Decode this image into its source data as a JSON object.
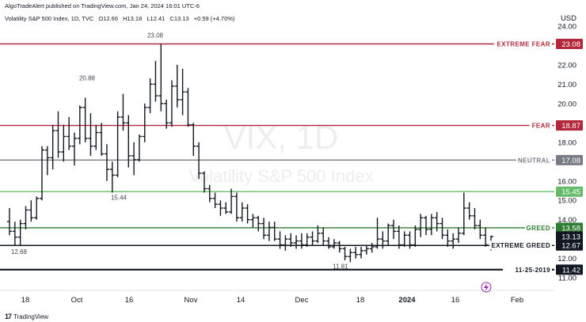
{
  "header": {
    "publisher": "AlgoTradeAlert published on TradingView.com, Jan 24, 2024 16:01 UTC-6",
    "symbol": "Volatility S&P 500 Index, 1D, TVC",
    "open": "O12.66",
    "high": "H13.18",
    "low": "L12.41",
    "close": "C13.13",
    "change": "+0.59 (+4.70%)"
  },
  "footer": {
    "logo": "17",
    "brand": "TradingView"
  },
  "colors": {
    "fear": "#b2283a",
    "neutral": "#787b86",
    "greed": "#2e7d32",
    "greed_light": "#66bb6a",
    "black": "#131722"
  },
  "chart_data": {
    "type": "ohlc-bar",
    "title": "Volatility S&P 500 Index",
    "watermark_symbol": "VIX, 1D",
    "watermark_name": "Volatility S&P 500 Index",
    "currency": "USD",
    "ylim": [
      10.2,
      24.4
    ],
    "y_ticks": [
      "11.00",
      "12.00",
      "13.00",
      "14.00",
      "15.00",
      "16.00",
      "18.00",
      "20.00",
      "21.00",
      "22.00",
      "23.00",
      "24.00"
    ],
    "x_ticks": [
      "18",
      "Oct",
      "16",
      "Nov",
      "14",
      "Dec",
      "18",
      "2024",
      "16",
      "Feb"
    ],
    "levels": [
      {
        "label": "EXTREME FEAR",
        "value": 23.08,
        "badge": "23.08",
        "color": "#b2283a"
      },
      {
        "label": "FEAR",
        "value": 18.87,
        "badge": "18.87",
        "color": "#b2283a"
      },
      {
        "label": "NEUTRAL",
        "value": 17.08,
        "badge": "17.08",
        "color": "#787b86"
      },
      {
        "label": "",
        "value": 15.45,
        "badge": "15.45",
        "color": "#66bb6a"
      },
      {
        "label": "GREED",
        "value": 13.58,
        "badge": "13.58",
        "color": "#2e7d32"
      },
      {
        "label": "EXTREME GREED",
        "value": 12.67,
        "badge": "12.67",
        "color": "#131722"
      },
      {
        "label": "11-25-2019",
        "value": 11.42,
        "badge": "11.42",
        "color": "#131722"
      }
    ],
    "last_price": {
      "value": 13.13,
      "badge": "13.13"
    },
    "annotations": [
      {
        "text": "23.08",
        "value": 23.08
      },
      {
        "text": "20.88",
        "value": 20.88
      },
      {
        "text": "15.44",
        "value": 15.44
      },
      {
        "text": "12.68",
        "value": 12.68
      },
      {
        "text": "11.81",
        "value": 11.81
      }
    ],
    "bars": [
      [
        13.9,
        14.6,
        13.2,
        13.4
      ],
      [
        13.4,
        13.9,
        12.7,
        13.1
      ],
      [
        13.1,
        14.0,
        12.7,
        13.8
      ],
      [
        13.8,
        14.7,
        13.5,
        14.5
      ],
      [
        14.5,
        15.0,
        13.9,
        14.1
      ],
      [
        14.1,
        15.2,
        14.0,
        15.1
      ],
      [
        15.1,
        17.8,
        15.0,
        17.6
      ],
      [
        17.6,
        17.8,
        16.3,
        17.2
      ],
      [
        17.2,
        18.9,
        16.6,
        18.6
      ],
      [
        18.6,
        19.6,
        17.2,
        17.5
      ],
      [
        17.5,
        18.9,
        17.0,
        18.3
      ],
      [
        18.3,
        19.3,
        17.6,
        17.8
      ],
      [
        17.8,
        18.5,
        16.8,
        18.2
      ],
      [
        18.2,
        19.9,
        17.9,
        19.8
      ],
      [
        19.8,
        20.3,
        18.0,
        18.2
      ],
      [
        18.2,
        19.5,
        17.3,
        17.8
      ],
      [
        17.8,
        18.9,
        17.6,
        18.5
      ],
      [
        18.5,
        19.0,
        17.3,
        17.4
      ],
      [
        17.4,
        17.9,
        16.0,
        16.6
      ],
      [
        16.6,
        17.0,
        15.4,
        16.3
      ],
      [
        16.3,
        19.6,
        16.2,
        19.3
      ],
      [
        19.3,
        20.5,
        18.6,
        19.0
      ],
      [
        19.0,
        19.4,
        16.7,
        17.3
      ],
      [
        17.3,
        18.0,
        16.3,
        17.1
      ],
      [
        17.1,
        18.4,
        17.0,
        18.3
      ],
      [
        18.3,
        20.0,
        18.0,
        19.8
      ],
      [
        19.8,
        21.3,
        19.5,
        21.0
      ],
      [
        21.0,
        22.2,
        20.1,
        20.4
      ],
      [
        20.4,
        23.08,
        19.6,
        20.0
      ],
      [
        20.0,
        20.2,
        18.7,
        19.0
      ],
      [
        19.0,
        21.2,
        18.8,
        20.9
      ],
      [
        20.9,
        22.0,
        19.8,
        20.2
      ],
      [
        20.2,
        21.8,
        19.4,
        20.6
      ],
      [
        20.6,
        20.8,
        18.8,
        18.9
      ],
      [
        18.9,
        19.0,
        17.3,
        17.8
      ],
      [
        17.8,
        18.0,
        16.1,
        16.4
      ],
      [
        16.4,
        16.5,
        15.4,
        15.6
      ],
      [
        15.6,
        15.8,
        14.9,
        15.1
      ],
      [
        15.1,
        15.4,
        14.6,
        14.8
      ],
      [
        14.8,
        15.0,
        14.2,
        14.6
      ],
      [
        14.6,
        14.9,
        14.3,
        14.4
      ],
      [
        14.4,
        15.6,
        14.3,
        15.2
      ],
      [
        15.2,
        15.4,
        13.9,
        14.1
      ],
      [
        14.1,
        14.9,
        13.9,
        14.6
      ],
      [
        14.6,
        14.8,
        13.8,
        14.0
      ],
      [
        14.0,
        14.3,
        13.6,
        14.1
      ],
      [
        14.1,
        14.2,
        13.4,
        13.8
      ],
      [
        13.8,
        14.1,
        13.0,
        13.2
      ],
      [
        13.2,
        13.9,
        12.9,
        13.6
      ],
      [
        13.6,
        13.9,
        12.9,
        13.0
      ],
      [
        13.0,
        13.4,
        12.5,
        12.7
      ],
      [
        12.7,
        13.2,
        12.4,
        13.0
      ],
      [
        13.0,
        13.3,
        12.6,
        12.8
      ],
      [
        12.8,
        13.2,
        12.5,
        12.9
      ],
      [
        12.9,
        13.3,
        12.5,
        12.7
      ],
      [
        12.7,
        13.3,
        12.6,
        13.1
      ],
      [
        13.1,
        13.4,
        12.7,
        12.9
      ],
      [
        12.9,
        13.7,
        12.8,
        13.3
      ],
      [
        13.3,
        13.6,
        12.7,
        12.9
      ],
      [
        12.9,
        13.1,
        12.5,
        12.6
      ],
      [
        12.6,
        13.0,
        12.5,
        12.8
      ],
      [
        12.8,
        12.9,
        12.3,
        12.5
      ],
      [
        12.5,
        12.6,
        11.9,
        12.1
      ],
      [
        12.1,
        12.5,
        11.81,
        12.3
      ],
      [
        12.3,
        12.6,
        12.0,
        12.2
      ],
      [
        12.2,
        12.6,
        12.0,
        12.4
      ],
      [
        12.4,
        12.7,
        12.2,
        12.5
      ],
      [
        12.5,
        12.8,
        12.3,
        12.6
      ],
      [
        12.6,
        14.1,
        12.5,
        13.0
      ],
      [
        13.0,
        13.4,
        12.5,
        12.9
      ],
      [
        12.9,
        13.8,
        12.7,
        13.7
      ],
      [
        13.7,
        14.0,
        13.0,
        13.4
      ],
      [
        13.4,
        13.7,
        12.5,
        12.7
      ],
      [
        12.7,
        13.4,
        12.6,
        13.2
      ],
      [
        13.2,
        13.4,
        12.5,
        12.7
      ],
      [
        12.7,
        13.7,
        12.6,
        13.5
      ],
      [
        13.5,
        14.3,
        13.1,
        14.1
      ],
      [
        14.1,
        14.2,
        13.2,
        13.5
      ],
      [
        13.5,
        14.3,
        13.2,
        14.1
      ],
      [
        14.1,
        14.4,
        13.4,
        13.8
      ],
      [
        13.8,
        14.1,
        13.0,
        13.2
      ],
      [
        13.2,
        13.5,
        12.6,
        12.9
      ],
      [
        12.9,
        13.3,
        12.5,
        13.0
      ],
      [
        13.0,
        13.6,
        12.8,
        13.3
      ],
      [
        13.3,
        15.4,
        13.2,
        14.6
      ],
      [
        14.6,
        14.9,
        14.0,
        14.2
      ],
      [
        14.2,
        14.6,
        13.5,
        13.7
      ],
      [
        13.7,
        14.0,
        13.0,
        13.2
      ],
      [
        13.2,
        13.6,
        12.6,
        12.7
      ],
      [
        12.66,
        13.18,
        12.41,
        13.13
      ]
    ]
  }
}
